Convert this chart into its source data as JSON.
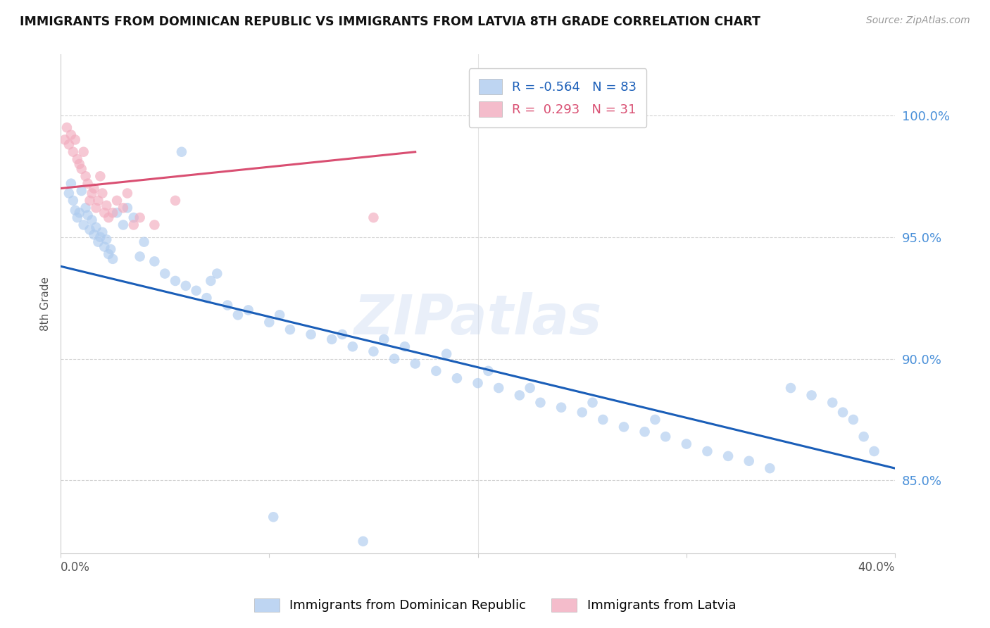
{
  "title": "IMMIGRANTS FROM DOMINICAN REPUBLIC VS IMMIGRANTS FROM LATVIA 8TH GRADE CORRELATION CHART",
  "source": "Source: ZipAtlas.com",
  "ylabel": "8th Grade",
  "xlim": [
    0.0,
    40.0
  ],
  "ylim": [
    82.0,
    102.5
  ],
  "yticks": [
    85.0,
    90.0,
    95.0,
    100.0
  ],
  "ytick_labels": [
    "85.0%",
    "90.0%",
    "95.0%",
    "100.0%"
  ],
  "xticks": [
    0.0,
    10.0,
    20.0,
    30.0,
    40.0
  ],
  "xtick_labels_show": [
    "0.0%",
    "",
    "",
    "",
    "40.0%"
  ],
  "blue_R": -0.564,
  "blue_N": 83,
  "pink_R": 0.293,
  "pink_N": 31,
  "blue_color": "#aecbef",
  "pink_color": "#f2abbe",
  "blue_line_color": "#1a5eb8",
  "pink_line_color": "#d94f72",
  "blue_scatter_x": [
    0.4,
    0.5,
    0.6,
    0.7,
    0.8,
    0.9,
    1.0,
    1.1,
    1.2,
    1.3,
    1.4,
    1.5,
    1.6,
    1.7,
    1.8,
    1.9,
    2.0,
    2.1,
    2.2,
    2.3,
    2.4,
    2.5,
    2.7,
    3.0,
    3.2,
    3.5,
    3.8,
    4.0,
    4.5,
    5.0,
    5.5,
    6.0,
    6.5,
    7.0,
    7.5,
    8.0,
    9.0,
    10.0,
    10.5,
    11.0,
    12.0,
    13.0,
    13.5,
    14.0,
    15.0,
    15.5,
    16.0,
    17.0,
    18.0,
    18.5,
    19.0,
    20.0,
    20.5,
    21.0,
    22.0,
    22.5,
    23.0,
    24.0,
    25.0,
    25.5,
    26.0,
    27.0,
    28.0,
    28.5,
    29.0,
    30.0,
    31.0,
    32.0,
    33.0,
    34.0,
    35.0,
    36.0,
    37.0,
    37.5,
    38.0,
    38.5,
    39.0,
    5.8,
    7.2,
    8.5,
    10.2,
    14.5,
    16.5
  ],
  "blue_scatter_y": [
    96.8,
    97.2,
    96.5,
    96.1,
    95.8,
    96.0,
    96.9,
    95.5,
    96.2,
    95.9,
    95.3,
    95.7,
    95.1,
    95.4,
    94.8,
    95.0,
    95.2,
    94.6,
    94.9,
    94.3,
    94.5,
    94.1,
    96.0,
    95.5,
    96.2,
    95.8,
    94.2,
    94.8,
    94.0,
    93.5,
    93.2,
    93.0,
    92.8,
    92.5,
    93.5,
    92.2,
    92.0,
    91.5,
    91.8,
    91.2,
    91.0,
    90.8,
    91.0,
    90.5,
    90.3,
    90.8,
    90.0,
    89.8,
    89.5,
    90.2,
    89.2,
    89.0,
    89.5,
    88.8,
    88.5,
    88.8,
    88.2,
    88.0,
    87.8,
    88.2,
    87.5,
    87.2,
    87.0,
    87.5,
    86.8,
    86.5,
    86.2,
    86.0,
    85.8,
    85.5,
    88.8,
    88.5,
    88.2,
    87.8,
    87.5,
    86.8,
    86.2,
    98.5,
    93.2,
    91.8,
    83.5,
    82.5,
    90.5
  ],
  "pink_scatter_x": [
    0.2,
    0.3,
    0.4,
    0.5,
    0.6,
    0.7,
    0.8,
    0.9,
    1.0,
    1.1,
    1.2,
    1.3,
    1.4,
    1.5,
    1.6,
    1.7,
    1.8,
    1.9,
    2.0,
    2.1,
    2.2,
    2.3,
    2.5,
    2.7,
    3.0,
    3.2,
    3.5,
    3.8,
    4.5,
    5.5,
    15.0
  ],
  "pink_scatter_y": [
    99.0,
    99.5,
    98.8,
    99.2,
    98.5,
    99.0,
    98.2,
    98.0,
    97.8,
    98.5,
    97.5,
    97.2,
    96.5,
    96.8,
    97.0,
    96.2,
    96.5,
    97.5,
    96.8,
    96.0,
    96.3,
    95.8,
    96.0,
    96.5,
    96.2,
    96.8,
    95.5,
    95.8,
    95.5,
    96.5,
    95.8
  ],
  "blue_line_x": [
    0.0,
    40.0
  ],
  "blue_line_y": [
    93.8,
    85.5
  ],
  "pink_line_x": [
    0.0,
    17.0
  ],
  "pink_line_y": [
    97.0,
    98.5
  ],
  "watermark": "ZIPatlas",
  "background_color": "#ffffff",
  "grid_color": "#c8c8c8"
}
